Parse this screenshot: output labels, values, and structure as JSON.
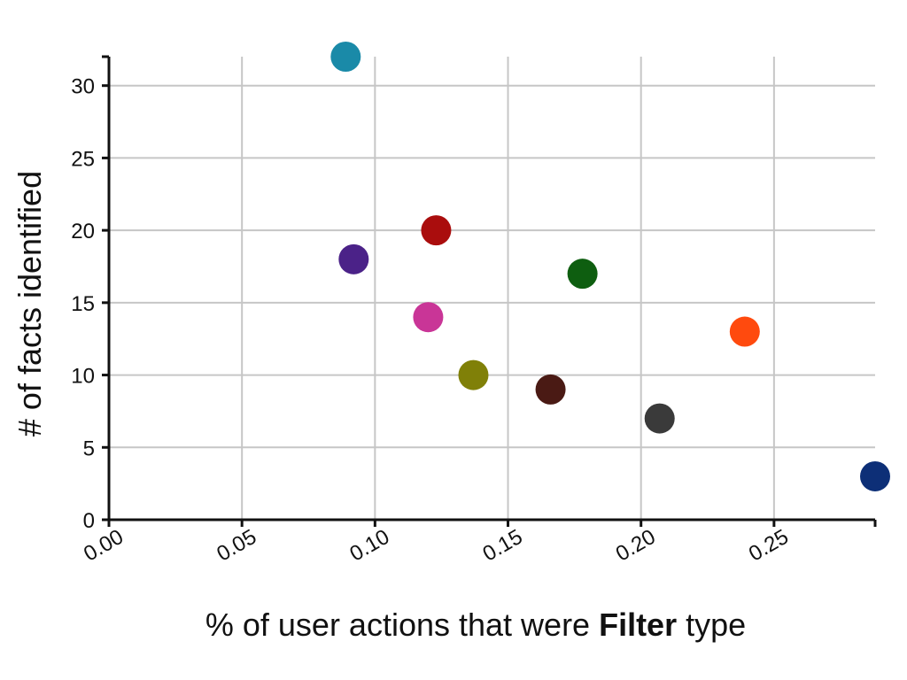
{
  "chart_data": {
    "type": "scatter",
    "title": "",
    "xlabel_parts": [
      {
        "text": "% of user actions that were ",
        "bold": false
      },
      {
        "text": "Filter",
        "bold": true
      },
      {
        "text": " type",
        "bold": false
      }
    ],
    "ylabel": "# of facts identified",
    "xlim": [
      0,
      0.288
    ],
    "ylim": [
      0,
      32
    ],
    "x_ticks": [
      0.0,
      0.05,
      0.1,
      0.15,
      0.2,
      0.25
    ],
    "x_tick_labels": [
      "0.00",
      "0.05",
      "0.10",
      "0.15",
      "0.20",
      "0.25"
    ],
    "y_ticks": [
      0,
      5,
      10,
      15,
      20,
      25,
      30
    ],
    "y_tick_labels": [
      "0",
      "5",
      "10",
      "15",
      "20",
      "25",
      "30"
    ],
    "grid": true,
    "legend": "none",
    "points": [
      {
        "x": 0.089,
        "y": 32,
        "color": "#1a8aa8"
      },
      {
        "x": 0.092,
        "y": 18,
        "color": "#4b2288"
      },
      {
        "x": 0.123,
        "y": 20,
        "color": "#aa0d0d"
      },
      {
        "x": 0.12,
        "y": 14,
        "color": "#c93597"
      },
      {
        "x": 0.137,
        "y": 10,
        "color": "#808008"
      },
      {
        "x": 0.166,
        "y": 9,
        "color": "#4a1a14"
      },
      {
        "x": 0.178,
        "y": 17,
        "color": "#0e5e10"
      },
      {
        "x": 0.207,
        "y": 7,
        "color": "#3a3a3a"
      },
      {
        "x": 0.239,
        "y": 13,
        "color": "#ff4a0e"
      },
      {
        "x": 0.288,
        "y": 3,
        "color": "#0d2f77"
      }
    ]
  }
}
